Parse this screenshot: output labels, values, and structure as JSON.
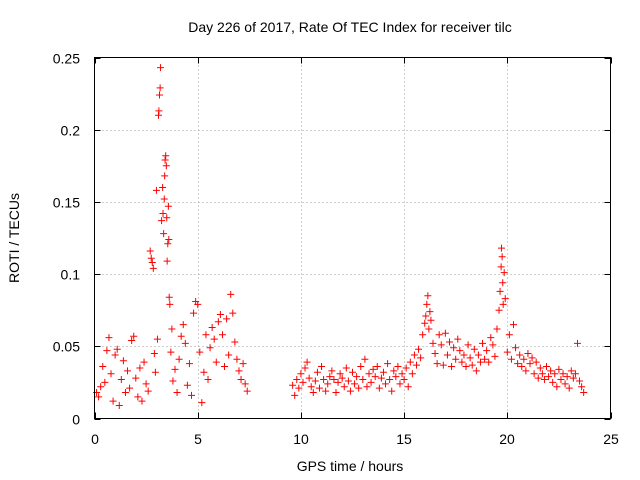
{
  "chart_data": {
    "type": "scatter",
    "title": "Day 226 of 2017, Rate Of TEC Index for receiver tilc",
    "xlabel": "GPS time / hours",
    "ylabel": "ROTI / TECUs",
    "xlim": [
      0,
      25
    ],
    "ylim": [
      0,
      0.25
    ],
    "xticks": [
      0,
      5,
      10,
      15,
      20,
      25
    ],
    "xtick_labels": [
      "0",
      "5",
      "10",
      "15",
      "20",
      "25"
    ],
    "yticks": [
      0,
      0.05,
      0.1,
      0.15,
      0.2,
      0.25
    ],
    "ytick_labels": [
      "0",
      "0.05",
      "0.1",
      "0.15",
      "0.2",
      "0.25"
    ],
    "grid": true,
    "marker": "plus",
    "color": "#ff0000",
    "series": [
      {
        "name": "ROTI",
        "points": [
          [
            0.1,
            0.018
          ],
          [
            0.2,
            0.015
          ],
          [
            0.3,
            0.022
          ],
          [
            0.4,
            0.036
          ],
          [
            0.5,
            0.025
          ],
          [
            0.6,
            0.047
          ],
          [
            0.7,
            0.056
          ],
          [
            0.8,
            0.031
          ],
          [
            0.9,
            0.012
          ],
          [
            1.0,
            0.044
          ],
          [
            1.1,
            0.048
          ],
          [
            1.2,
            0.009
          ],
          [
            1.3,
            0.027
          ],
          [
            1.4,
            0.04
          ],
          [
            1.5,
            0.018
          ],
          [
            1.6,
            0.033
          ],
          [
            1.7,
            0.021
          ],
          [
            1.8,
            0.054
          ],
          [
            1.9,
            0.057
          ],
          [
            2.0,
            0.028
          ],
          [
            2.1,
            0.015
          ],
          [
            2.2,
            0.035
          ],
          [
            2.3,
            0.012
          ],
          [
            2.4,
            0.039
          ],
          [
            2.5,
            0.024
          ],
          [
            2.6,
            0.019
          ],
          [
            2.7,
            0.116
          ],
          [
            2.75,
            0.111
          ],
          [
            2.8,
            0.108
          ],
          [
            2.85,
            0.104
          ],
          [
            2.9,
            0.045
          ],
          [
            2.95,
            0.032
          ],
          [
            3.0,
            0.158
          ],
          [
            3.05,
            0.055
          ],
          [
            3.1,
            0.21
          ],
          [
            3.12,
            0.213
          ],
          [
            3.15,
            0.224
          ],
          [
            3.18,
            0.229
          ],
          [
            3.2,
            0.243
          ],
          [
            3.25,
            0.137
          ],
          [
            3.3,
            0.16
          ],
          [
            3.32,
            0.142
          ],
          [
            3.35,
            0.128
          ],
          [
            3.38,
            0.152
          ],
          [
            3.4,
            0.168
          ],
          [
            3.42,
            0.179
          ],
          [
            3.45,
            0.182
          ],
          [
            3.48,
            0.175
          ],
          [
            3.5,
            0.139
          ],
          [
            3.52,
            0.109
          ],
          [
            3.55,
            0.121
          ],
          [
            3.58,
            0.147
          ],
          [
            3.6,
            0.124
          ],
          [
            3.62,
            0.084
          ],
          [
            3.65,
            0.079
          ],
          [
            3.7,
            0.046
          ],
          [
            3.75,
            0.062
          ],
          [
            3.8,
            0.026
          ],
          [
            3.9,
            0.034
          ],
          [
            4.0,
            0.018
          ],
          [
            4.1,
            0.041
          ],
          [
            4.2,
            0.057
          ],
          [
            4.3,
            0.065
          ],
          [
            4.4,
            0.052
          ],
          [
            4.5,
            0.023
          ],
          [
            4.6,
            0.038
          ],
          [
            4.7,
            0.016
          ],
          [
            4.8,
            0.073
          ],
          [
            4.9,
            0.081
          ],
          [
            5.0,
            0.079
          ],
          [
            5.1,
            0.046
          ],
          [
            5.2,
            0.011
          ],
          [
            5.3,
            0.032
          ],
          [
            5.4,
            0.058
          ],
          [
            5.5,
            0.027
          ],
          [
            5.6,
            0.049
          ],
          [
            5.7,
            0.063
          ],
          [
            5.8,
            0.055
          ],
          [
            5.9,
            0.039
          ],
          [
            6.0,
            0.067
          ],
          [
            6.1,
            0.072
          ],
          [
            6.2,
            0.058
          ],
          [
            6.3,
            0.036
          ],
          [
            6.4,
            0.069
          ],
          [
            6.5,
            0.044
          ],
          [
            6.6,
            0.086
          ],
          [
            6.7,
            0.073
          ],
          [
            6.8,
            0.053
          ],
          [
            6.9,
            0.041
          ],
          [
            7.0,
            0.033
          ],
          [
            7.1,
            0.027
          ],
          [
            7.2,
            0.038
          ],
          [
            7.3,
            0.024
          ],
          [
            7.4,
            0.019
          ],
          [
            9.6,
            0.023
          ],
          [
            9.7,
            0.016
          ],
          [
            9.8,
            0.027
          ],
          [
            9.9,
            0.021
          ],
          [
            10.0,
            0.031
          ],
          [
            10.1,
            0.025
          ],
          [
            10.2,
            0.035
          ],
          [
            10.3,
            0.039
          ],
          [
            10.4,
            0.028
          ],
          [
            10.5,
            0.022
          ],
          [
            10.6,
            0.018
          ],
          [
            10.7,
            0.026
          ],
          [
            10.8,
            0.032
          ],
          [
            10.9,
            0.021
          ],
          [
            11.0,
            0.036
          ],
          [
            11.1,
            0.027
          ],
          [
            11.2,
            0.019
          ],
          [
            11.3,
            0.024
          ],
          [
            11.4,
            0.029
          ],
          [
            11.5,
            0.033
          ],
          [
            11.6,
            0.027
          ],
          [
            11.7,
            0.018
          ],
          [
            11.8,
            0.025
          ],
          [
            11.9,
            0.031
          ],
          [
            12.0,
            0.028
          ],
          [
            12.1,
            0.022
          ],
          [
            12.2,
            0.035
          ],
          [
            12.3,
            0.026
          ],
          [
            12.4,
            0.019
          ],
          [
            12.5,
            0.032
          ],
          [
            12.6,
            0.024
          ],
          [
            12.7,
            0.029
          ],
          [
            12.8,
            0.021
          ],
          [
            12.9,
            0.036
          ],
          [
            13.0,
            0.027
          ],
          [
            13.1,
            0.041
          ],
          [
            13.2,
            0.022
          ],
          [
            13.3,
            0.031
          ],
          [
            13.4,
            0.025
          ],
          [
            13.5,
            0.034
          ],
          [
            13.6,
            0.029
          ],
          [
            13.7,
            0.036
          ],
          [
            13.8,
            0.021
          ],
          [
            13.9,
            0.028
          ],
          [
            14.0,
            0.032
          ],
          [
            14.1,
            0.024
          ],
          [
            14.2,
            0.038
          ],
          [
            14.3,
            0.027
          ],
          [
            14.4,
            0.019
          ],
          [
            14.5,
            0.033
          ],
          [
            14.6,
            0.029
          ],
          [
            14.7,
            0.036
          ],
          [
            14.8,
            0.024
          ],
          [
            14.9,
            0.031
          ],
          [
            15.0,
            0.027
          ],
          [
            15.1,
            0.035
          ],
          [
            15.2,
            0.022
          ],
          [
            15.3,
            0.039
          ],
          [
            15.4,
            0.031
          ],
          [
            15.5,
            0.044
          ],
          [
            15.6,
            0.037
          ],
          [
            15.7,
            0.048
          ],
          [
            15.8,
            0.042
          ],
          [
            15.9,
            0.058
          ],
          [
            16.0,
            0.066
          ],
          [
            16.05,
            0.071
          ],
          [
            16.1,
            0.079
          ],
          [
            16.15,
            0.085
          ],
          [
            16.2,
            0.062
          ],
          [
            16.25,
            0.074
          ],
          [
            16.3,
            0.068
          ],
          [
            16.4,
            0.052
          ],
          [
            16.5,
            0.045
          ],
          [
            16.6,
            0.038
          ],
          [
            16.7,
            0.058
          ],
          [
            16.8,
            0.051
          ],
          [
            16.9,
            0.037
          ],
          [
            17.0,
            0.059
          ],
          [
            17.1,
            0.044
          ],
          [
            17.2,
            0.053
          ],
          [
            17.3,
            0.036
          ],
          [
            17.4,
            0.049
          ],
          [
            17.5,
            0.041
          ],
          [
            17.6,
            0.055
          ],
          [
            17.7,
            0.047
          ],
          [
            17.8,
            0.039
          ],
          [
            17.9,
            0.044
          ],
          [
            18.0,
            0.036
          ],
          [
            18.1,
            0.051
          ],
          [
            18.2,
            0.042
          ],
          [
            18.3,
            0.037
          ],
          [
            18.4,
            0.048
          ],
          [
            18.5,
            0.033
          ],
          [
            18.6,
            0.044
          ],
          [
            18.7,
            0.039
          ],
          [
            18.8,
            0.052
          ],
          [
            18.9,
            0.041
          ],
          [
            19.0,
            0.047
          ],
          [
            19.1,
            0.039
          ],
          [
            19.2,
            0.056
          ],
          [
            19.3,
            0.051
          ],
          [
            19.4,
            0.043
          ],
          [
            19.5,
            0.062
          ],
          [
            19.6,
            0.075
          ],
          [
            19.65,
            0.088
          ],
          [
            19.7,
            0.105
          ],
          [
            19.72,
            0.118
          ],
          [
            19.75,
            0.112
          ],
          [
            19.78,
            0.094
          ],
          [
            19.8,
            0.079
          ],
          [
            19.85,
            0.101
          ],
          [
            19.9,
            0.083
          ],
          [
            20.0,
            0.046
          ],
          [
            20.1,
            0.058
          ],
          [
            20.2,
            0.041
          ],
          [
            20.3,
            0.065
          ],
          [
            20.4,
            0.049
          ],
          [
            20.5,
            0.038
          ],
          [
            20.6,
            0.044
          ],
          [
            20.7,
            0.036
          ],
          [
            20.8,
            0.041
          ],
          [
            20.9,
            0.033
          ],
          [
            21.0,
            0.045
          ],
          [
            21.1,
            0.038
          ],
          [
            21.2,
            0.042
          ],
          [
            21.3,
            0.031
          ],
          [
            21.4,
            0.039
          ],
          [
            21.5,
            0.028
          ],
          [
            21.6,
            0.035
          ],
          [
            21.7,
            0.031
          ],
          [
            21.8,
            0.027
          ],
          [
            21.9,
            0.036
          ],
          [
            22.0,
            0.029
          ],
          [
            22.1,
            0.033
          ],
          [
            22.2,
            0.025
          ],
          [
            22.3,
            0.031
          ],
          [
            22.4,
            0.022
          ],
          [
            22.5,
            0.034
          ],
          [
            22.6,
            0.027
          ],
          [
            22.7,
            0.031
          ],
          [
            22.8,
            0.024
          ],
          [
            22.9,
            0.029
          ],
          [
            23.0,
            0.021
          ],
          [
            23.1,
            0.033
          ],
          [
            23.2,
            0.028
          ],
          [
            23.3,
            0.031
          ],
          [
            23.4,
            0.052
          ],
          [
            23.5,
            0.026
          ],
          [
            23.6,
            0.022
          ],
          [
            23.7,
            0.018
          ]
        ]
      }
    ]
  }
}
